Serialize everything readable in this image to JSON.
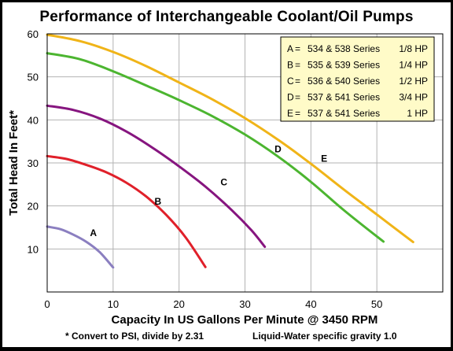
{
  "chart_data": {
    "type": "line",
    "title": "Performance of Interchangeable Coolant/Oil Pumps",
    "xlabel": "Capacity In US Gallons Per Minute @ 3450 RPM",
    "ylabel": "Total Head In Feet*",
    "xlim": [
      0,
      60
    ],
    "ylim": [
      0,
      60
    ],
    "x_ticks": [
      "0",
      "10",
      "20",
      "30",
      "40",
      "50"
    ],
    "y_ticks": [
      "10",
      "20",
      "30",
      "40",
      "50",
      "60"
    ],
    "grid": true,
    "legend_position": "top-right",
    "notes": [
      "* Convert to PSI, divide by 2.31",
      "Liquid-Water specific gravity 1.0"
    ],
    "series": [
      {
        "name": "A",
        "series_text": "534 & 538 Series",
        "hp": "1/8 HP",
        "color": "#8b7fc0",
        "label_at": [
          7,
          13
        ],
        "points": [
          [
            0,
            15.2
          ],
          [
            2,
            14.6
          ],
          [
            4,
            13.3
          ],
          [
            6,
            11.6
          ],
          [
            8,
            9.2
          ],
          [
            10,
            5.7
          ]
        ]
      },
      {
        "name": "B",
        "series_text": "535 & 539 Series",
        "hp": "1/4 HP",
        "color": "#e0202a",
        "label_at": [
          16.8,
          20.3
        ],
        "points": [
          [
            0,
            31.6
          ],
          [
            3,
            30.9
          ],
          [
            6,
            29.5
          ],
          [
            9,
            27.8
          ],
          [
            12,
            25.4
          ],
          [
            15,
            22.2
          ],
          [
            18,
            18.0
          ],
          [
            21,
            12.7
          ],
          [
            24,
            5.8
          ]
        ]
      },
      {
        "name": "C",
        "series_text": "536 & 540 Series",
        "hp": "1/2 HP",
        "color": "#86157f",
        "label_at": [
          26.8,
          24.8
        ],
        "points": [
          [
            0,
            43.3
          ],
          [
            4,
            42.3
          ],
          [
            8,
            40.3
          ],
          [
            12,
            37.3
          ],
          [
            16,
            33.5
          ],
          [
            20,
            29.2
          ],
          [
            24,
            24.5
          ],
          [
            28,
            19.0
          ],
          [
            31,
            14.3
          ],
          [
            33,
            10.5
          ]
        ]
      },
      {
        "name": "D",
        "series_text": "537 & 541 Series",
        "hp": "3/4 HP",
        "color": "#4cb530",
        "label_at": [
          35,
          32.5
        ],
        "points": [
          [
            0,
            55.5
          ],
          [
            5,
            54.1
          ],
          [
            10,
            51.3
          ],
          [
            15,
            48.0
          ],
          [
            20,
            44.6
          ],
          [
            25,
            40.9
          ],
          [
            30,
            36.6
          ],
          [
            35,
            31.5
          ],
          [
            40,
            25.6
          ],
          [
            45,
            19.0
          ],
          [
            51,
            11.7
          ]
        ]
      },
      {
        "name": "E",
        "series_text": "537 & 541 Series",
        "hp": "1 HP",
        "color": "#f0b418",
        "label_at": [
          42,
          30.3
        ],
        "points": [
          [
            0,
            59.8
          ],
          [
            5,
            58.3
          ],
          [
            10,
            55.8
          ],
          [
            15,
            52.5
          ],
          [
            20,
            48.7
          ],
          [
            25,
            44.8
          ],
          [
            30,
            40.4
          ],
          [
            35,
            35.4
          ],
          [
            40,
            29.8
          ],
          [
            45,
            23.8
          ],
          [
            50,
            18.0
          ],
          [
            55.5,
            11.6
          ]
        ]
      }
    ]
  }
}
